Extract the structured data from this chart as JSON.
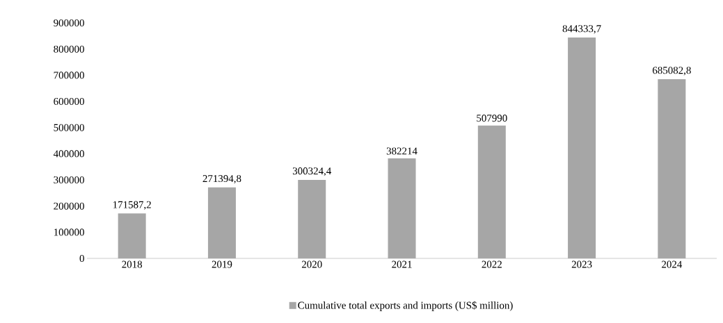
{
  "chart_data": {
    "type": "bar",
    "categories": [
      "2018",
      "2019",
      "2020",
      "2021",
      "2022",
      "2023",
      "2024"
    ],
    "series": [
      {
        "name": "Cumulative total exports and imports (US$ million)",
        "color": "#a6a6a6",
        "values": [
          171587.2,
          271394.8,
          300324.4,
          382214,
          507990,
          844333.7,
          685082.8
        ],
        "value_labels": [
          "171587,2",
          "271394,8",
          "300324,4",
          "382214",
          "507990",
          "844333,7",
          "685082,8"
        ]
      }
    ],
    "ylim": [
      0,
      900000
    ],
    "yticks": [
      0,
      100000,
      200000,
      300000,
      400000,
      500000,
      600000,
      700000,
      800000,
      900000
    ],
    "legend": "bottom"
  }
}
